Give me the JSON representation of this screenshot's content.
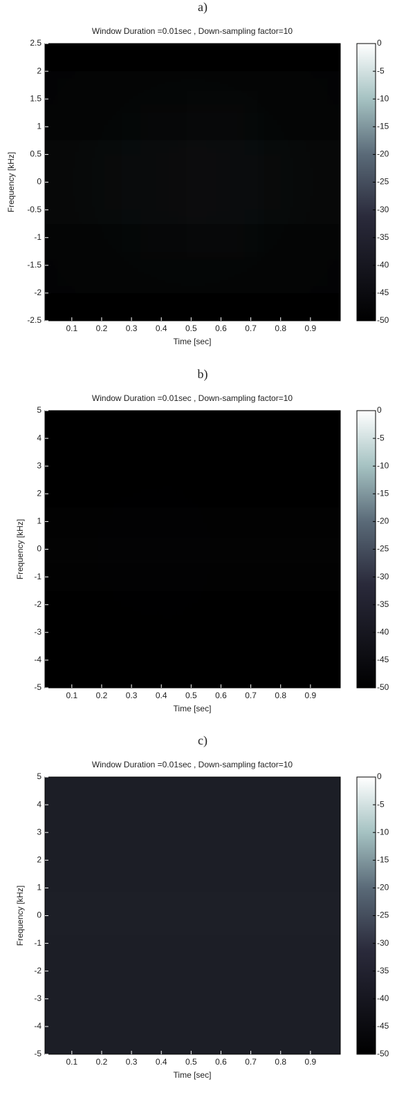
{
  "chart_data": [
    {
      "type": "spectrogram",
      "panel_label": "a)",
      "title": "Window Duration =0.01sec , Down-sampling factor=10",
      "xlabel": "Time [sec]",
      "ylabel": "Frequency [kHz]",
      "xlim": [
        0.01,
        1
      ],
      "xticks": [
        0.1,
        0.2,
        0.3,
        0.4,
        0.5,
        0.6,
        0.7,
        0.8,
        0.9
      ],
      "ylim": [
        -2.5,
        2.5
      ],
      "yticks": [
        2.5,
        2,
        1.5,
        1,
        0.5,
        0,
        -0.5,
        -1,
        -1.5,
        -2,
        -2.5
      ],
      "colormap": "bone",
      "clim": [
        -50,
        0
      ],
      "cticks": [
        0,
        -5,
        -10,
        -15,
        -20,
        -25,
        -30,
        -35,
        -40,
        -45,
        -50
      ]
    },
    {
      "type": "spectrogram",
      "panel_label": "b)",
      "title": "Window Duration =0.01sec , Down-sampling factor=10",
      "xlabel": "Time [sec]",
      "ylabel": "Frequency [kHz]",
      "xlim": [
        0.01,
        1
      ],
      "xticks": [
        0.1,
        0.2,
        0.3,
        0.4,
        0.5,
        0.6,
        0.7,
        0.8,
        0.9
      ],
      "ylim": [
        -5,
        5
      ],
      "yticks": [
        5,
        4,
        3,
        2,
        1,
        0,
        -1,
        -2,
        -3,
        -4,
        -5
      ],
      "colormap": "bone",
      "clim": [
        -50,
        0
      ],
      "cticks": [
        0,
        -5,
        -10,
        -15,
        -20,
        -25,
        -30,
        -35,
        -40,
        -45,
        -50
      ]
    },
    {
      "type": "spectrogram",
      "panel_label": "c)",
      "title": "Window Duration =0.01sec , Down-sampling factor=10",
      "xlabel": "Time [sec]",
      "ylabel": "Frequency [kHz]",
      "xlim": [
        0.01,
        1
      ],
      "xticks": [
        0.1,
        0.2,
        0.3,
        0.4,
        0.5,
        0.6,
        0.7,
        0.8,
        0.9
      ],
      "ylim": [
        -5,
        5
      ],
      "yticks": [
        5,
        4,
        3,
        2,
        1,
        0,
        -1,
        -2,
        -3,
        -4,
        -5
      ],
      "colormap": "bone",
      "clim": [
        -50,
        0
      ],
      "cticks": [
        0,
        -5,
        -10,
        -15,
        -20,
        -25,
        -30,
        -35,
        -40,
        -45,
        -50
      ]
    }
  ]
}
